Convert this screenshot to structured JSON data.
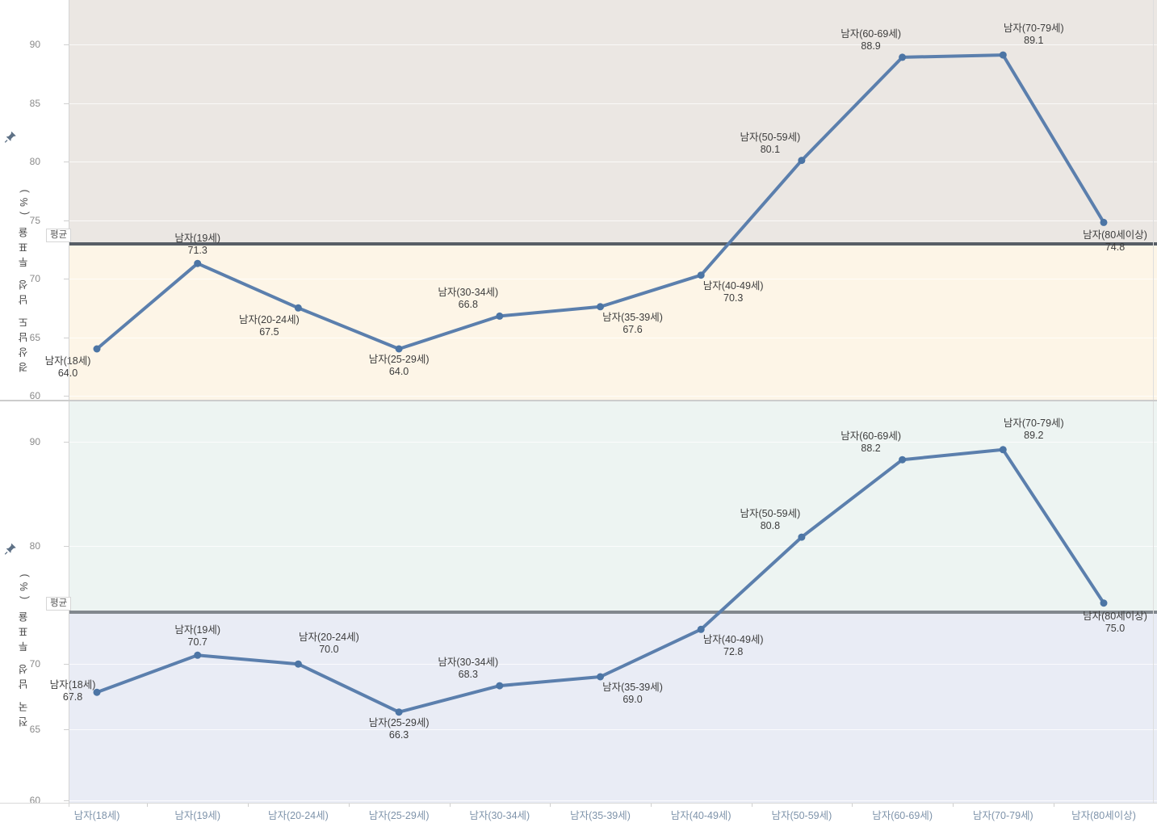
{
  "chart_data": {
    "type": "line",
    "categories": [
      "남자(18세)",
      "남자(19세)",
      "남자(20-24세)",
      "남자(25-29세)",
      "남자(30-34세)",
      "남자(35-39세)",
      "남자(40-49세)",
      "남자(50-59세)",
      "남자(60-69세)",
      "남자(70-79세)",
      "남자(80세이상)"
    ],
    "charts": [
      {
        "ylabel": "경상남도 남성 투표율 (%)",
        "yscale": "linear",
        "yticks": [
          60,
          65,
          70,
          75,
          80,
          85,
          90
        ],
        "ylim": [
          58.5,
          93.5
        ],
        "grid": true,
        "reference_line": {
          "label": "평균"
        },
        "values": [
          64.0,
          71.3,
          67.5,
          64.0,
          66.8,
          67.6,
          70.3,
          80.1,
          88.9,
          89.1,
          74.8
        ],
        "label_placements": [
          "below-left",
          "above",
          "below-left",
          "below",
          "above-left",
          "below-right",
          "below-right",
          "above-left",
          "above-left",
          "above-right",
          "below-right-near"
        ]
      },
      {
        "ylabel": "전국 남성 투표율 (%)",
        "yscale": "log",
        "yticks": [
          60,
          65,
          70,
          80,
          90
        ],
        "ylim": [
          58.5,
          93.5
        ],
        "grid": true,
        "reference_line": {
          "label": "평균"
        },
        "values": [
          67.8,
          70.7,
          70.0,
          66.3,
          68.3,
          69.0,
          72.8,
          80.8,
          88.2,
          89.2,
          75.0
        ],
        "label_placements": [
          "left",
          "above",
          "above-right",
          "below",
          "above-left",
          "below-right",
          "below-right",
          "above-left",
          "above-left",
          "above-right",
          "below-right-near"
        ]
      }
    ]
  },
  "colors": {
    "line": "#5b7fad",
    "marker": "#4c75a5",
    "ref_line_top": "#575e66",
    "ref_line_bottom": "#82888e",
    "panel1_bg_above": "#ebe7e3",
    "panel1_bg_below": "#fdf5e7",
    "panel2_bg_above": "#edf4f2",
    "panel2_bg_below": "#e9ecf5",
    "pin": "#5e7186"
  }
}
